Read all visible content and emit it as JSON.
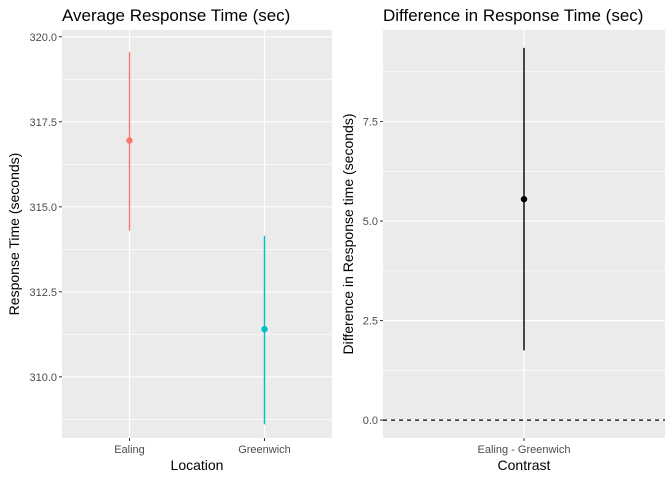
{
  "chart_data": [
    {
      "type": "scatter",
      "title": "Average Response Time (sec)",
      "xlabel": "Location",
      "ylabel": "Response Time (seconds)",
      "categories": [
        "Ealing",
        "Greenwich"
      ],
      "points": [
        {
          "category": "Ealing",
          "y": 316.95,
          "lower": 314.3,
          "upper": 319.55,
          "color": "#F8766D"
        },
        {
          "category": "Greenwich",
          "y": 311.4,
          "lower": 308.6,
          "upper": 314.15,
          "color": "#00BFC4"
        }
      ],
      "ylim": [
        308.2,
        320.2
      ],
      "yticks": [
        310.0,
        312.5,
        315.0,
        317.5,
        320.0
      ],
      "ytick_labels": [
        "310.0",
        "312.5",
        "315.0",
        "317.5",
        "320.0"
      ],
      "grid": true,
      "panel_background": "#EBEBEB"
    },
    {
      "type": "scatter",
      "title": "Difference in Response Time (sec)",
      "xlabel": "Contrast",
      "ylabel": "Difference in Response time (seconds)",
      "categories": [
        "Ealing - Greenwich"
      ],
      "points": [
        {
          "category": "Ealing - Greenwich",
          "y": 5.55,
          "lower": 1.75,
          "upper": 9.35,
          "color": "#000000"
        }
      ],
      "reference_line": {
        "y": 0.0,
        "style": "dashed",
        "color": "#000000"
      },
      "ylim": [
        -0.45,
        9.8
      ],
      "yticks": [
        0.0,
        2.5,
        5.0,
        7.5
      ],
      "ytick_labels": [
        "0.0",
        "2.5",
        "5.0",
        "7.5"
      ],
      "grid": true,
      "panel_background": "#EBEBEB"
    }
  ]
}
